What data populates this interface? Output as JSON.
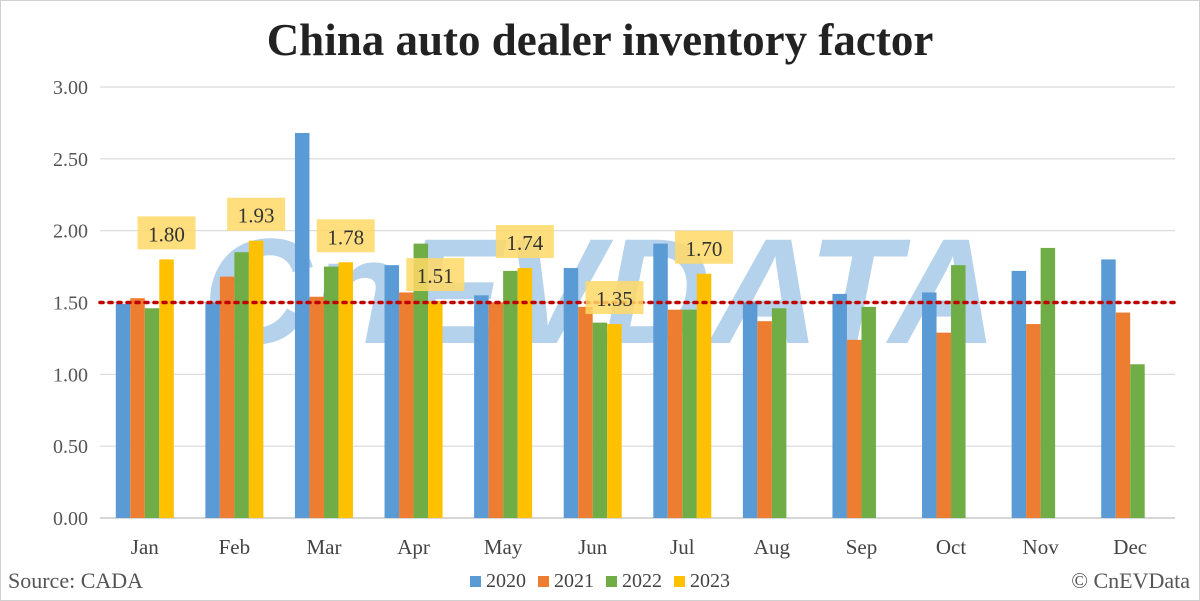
{
  "title": "China auto dealer inventory factor",
  "source": "Source: CADA",
  "copyright": "© CnEVData",
  "watermark": "CnEVDATA",
  "chart_data": {
    "type": "bar",
    "title": "China auto dealer inventory factor",
    "categories": [
      "Jan",
      "Feb",
      "Mar",
      "Apr",
      "May",
      "Jun",
      "Jul",
      "Aug",
      "Sep",
      "Oct",
      "Nov",
      "Dec"
    ],
    "series": [
      {
        "name": "2020",
        "color": "#5b9bd5",
        "values": [
          1.49,
          1.5,
          2.68,
          1.76,
          1.55,
          1.74,
          1.91,
          1.5,
          1.56,
          1.57,
          1.72,
          1.8
        ]
      },
      {
        "name": "2021",
        "color": "#ed7d31",
        "values": [
          1.53,
          1.68,
          1.54,
          1.57,
          1.5,
          1.47,
          1.45,
          1.37,
          1.24,
          1.29,
          1.35,
          1.43
        ]
      },
      {
        "name": "2022",
        "color": "#70ad47",
        "values": [
          1.46,
          1.85,
          1.75,
          1.91,
          1.72,
          1.36,
          1.45,
          1.46,
          1.47,
          1.76,
          1.88,
          1.07
        ]
      },
      {
        "name": "2023",
        "color": "#ffc000",
        "values": [
          1.8,
          1.93,
          1.78,
          1.51,
          1.74,
          1.35,
          1.7,
          null,
          null,
          null,
          null,
          null
        ]
      }
    ],
    "data_labels_series": "2023",
    "yticks": [
      "0.00",
      "0.50",
      "1.00",
      "1.50",
      "2.00",
      "2.50",
      "3.00"
    ],
    "ylim": [
      0,
      3
    ],
    "reference_line": {
      "value": 1.5,
      "color": "#c00000",
      "style": "dotted"
    },
    "grid": true,
    "legend_placement": "bottom",
    "label_box_color": "#ffd966"
  }
}
